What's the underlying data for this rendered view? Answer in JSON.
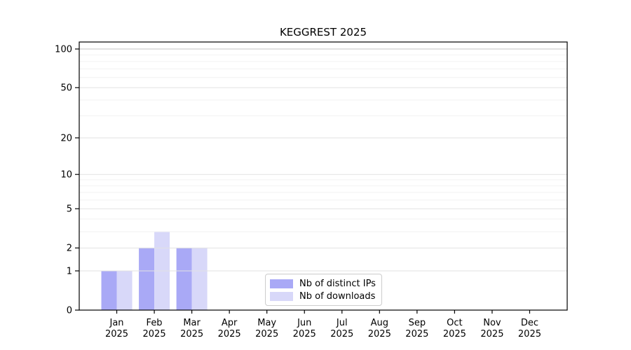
{
  "chart_data": {
    "type": "bar",
    "title": "KEGGREST 2025",
    "categories": [
      "Jan",
      "Feb",
      "Mar",
      "Apr",
      "May",
      "Jun",
      "Jul",
      "Aug",
      "Sep",
      "Oct",
      "Nov",
      "Dec"
    ],
    "x_year_label": "2025",
    "series": [
      {
        "name": "Nb of distinct IPs",
        "color": "#a9a9f6",
        "values": [
          1,
          2,
          2,
          0,
          0,
          0,
          0,
          0,
          0,
          0,
          0,
          0
        ]
      },
      {
        "name": "Nb of downloads",
        "color": "#d8d8f9",
        "values": [
          1,
          3,
          2,
          0,
          0,
          0,
          0,
          0,
          0,
          0,
          0,
          0
        ]
      }
    ],
    "y_axis": {
      "scale": "log10(v+1)",
      "ticks": [
        0,
        1,
        2,
        5,
        10,
        20,
        50,
        100
      ],
      "minor_ticks": [
        3,
        4,
        6,
        7,
        8,
        9,
        30,
        40,
        60,
        70,
        80,
        90
      ],
      "range_max": 113
    },
    "legend": {
      "position": "lower-center"
    },
    "grid": true,
    "colors": {
      "major_grid": "#e2e2e2",
      "top_grid": "#c6c6c6",
      "minor_grid": "#f2f2f2",
      "axis": "#000000",
      "text": "#000000"
    }
  }
}
